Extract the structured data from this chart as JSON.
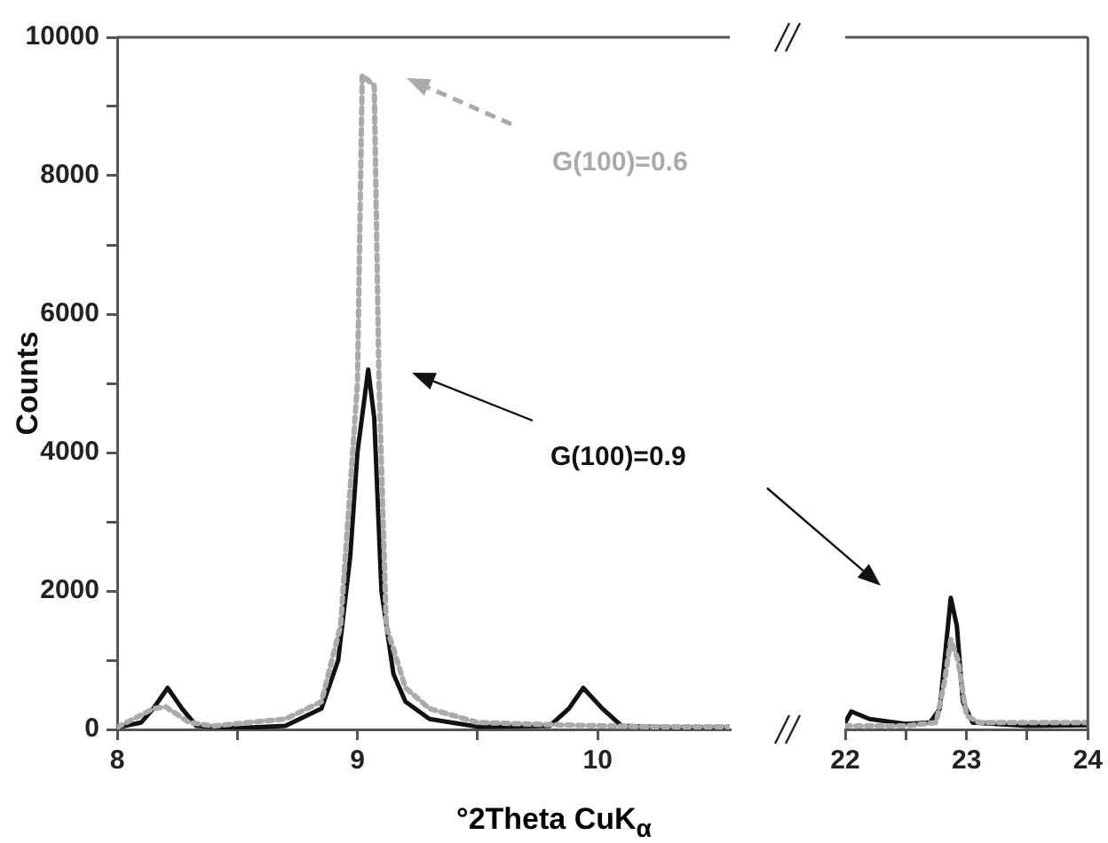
{
  "chart_data": [
    {
      "type": "line",
      "ylabel": "Counts",
      "xlabel": "°2Theta CuK$_{α}$",
      "annotations": [
        "G(100)=0.6",
        "G(100)=0.9"
      ],
      "xlim": [
        8,
        10.55
      ],
      "xticks": [
        8,
        {
          "value": 8.5,
          "label": null
        },
        9,
        {
          "value": 9.5,
          "label": null
        },
        10
      ],
      "ylim": [
        0,
        10000
      ],
      "yticks": [
        0,
        {
          "value": 1000,
          "label": null
        },
        2000,
        {
          "value": 3000,
          "label": null
        },
        4000,
        {
          "value": 5000,
          "label": null
        },
        6000,
        {
          "value": 7000,
          "label": null
        },
        8000,
        {
          "value": 9000,
          "label": null
        },
        10000
      ],
      "series": [
        {
          "color": "#aaaaaa",
          "line_style": "dotted",
          "x": [
            8.0,
            8.15,
            8.2,
            8.3,
            8.4,
            8.7,
            8.85,
            8.93,
            8.98,
            9.0,
            9.02,
            9.07,
            9.09,
            9.12,
            9.2,
            9.3,
            9.5,
            9.9,
            10.2,
            10.55
          ],
          "values": [
            30,
            300,
            330,
            100,
            50,
            150,
            400,
            1500,
            4000,
            5000,
            9450,
            9300,
            5000,
            1500,
            600,
            300,
            100,
            60,
            40,
            40
          ]
        },
        {
          "color": "#111111",
          "line_style": "solid",
          "x": [
            8.0,
            8.1,
            8.15,
            8.21,
            8.27,
            8.33,
            8.5,
            8.7,
            8.85,
            8.92,
            8.97,
            9.0,
            9.045,
            9.07,
            9.1,
            9.15,
            9.2,
            9.3,
            9.5,
            9.8,
            9.88,
            9.94,
            10.02,
            10.1,
            10.3,
            10.55
          ],
          "values": [
            30,
            100,
            300,
            600,
            300,
            50,
            20,
            50,
            300,
            1000,
            2500,
            4000,
            5200,
            4500,
            2000,
            800,
            400,
            150,
            40,
            50,
            300,
            600,
            300,
            50,
            30,
            30
          ]
        }
      ]
    },
    {
      "type": "line",
      "tick_labels": "x",
      "xlim": [
        22,
        24
      ],
      "xticks": [
        22,
        {
          "value": 22.5,
          "label": null
        },
        23,
        {
          "value": 23.5,
          "label": null
        },
        24
      ],
      "ylim": [
        0,
        10000
      ],
      "series": [
        {
          "color": "#aaaaaa",
          "line_style": "dotted",
          "x": [
            22.0,
            22.5,
            22.75,
            22.82,
            22.87,
            22.93,
            23.0,
            23.1,
            23.5,
            24.0
          ],
          "values": [
            50,
            50,
            100,
            700,
            1300,
            1000,
            200,
            100,
            100,
            100
          ]
        },
        {
          "color": "#111111",
          "line_style": "solid",
          "x": [
            22.0,
            22.05,
            22.2,
            22.5,
            22.7,
            22.78,
            22.83,
            22.87,
            22.92,
            22.97,
            23.05,
            23.5,
            24.0
          ],
          "values": [
            100,
            260,
            150,
            80,
            100,
            300,
            1200,
            1900,
            1500,
            400,
            100,
            50,
            60
          ]
        }
      ]
    }
  ]
}
